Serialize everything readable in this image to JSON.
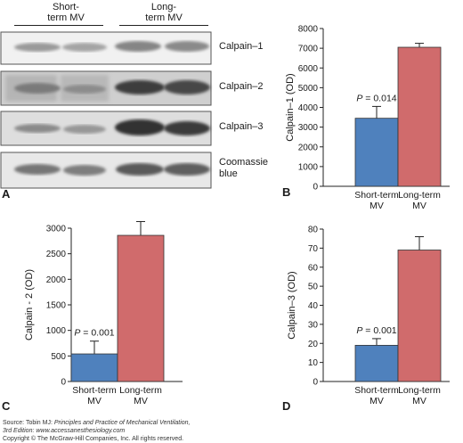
{
  "panel_a": {
    "letter": "A",
    "group_labels": [
      [
        "Short-",
        "term MV"
      ],
      [
        "Long-",
        "term MV"
      ]
    ],
    "blot_rows": [
      {
        "label": [
          "Calpain–1"
        ]
      },
      {
        "label": [
          "Calpain–2"
        ]
      },
      {
        "label": [
          "Calpain–3"
        ]
      },
      {
        "label": [
          "Coomassie",
          "blue"
        ]
      }
    ]
  },
  "chart_data": [
    {
      "letter": "B",
      "type": "bar",
      "ylabel": "Calpain–1 (OD)",
      "ylim": [
        0,
        8000
      ],
      "yticks": [
        0,
        1000,
        2000,
        3000,
        4000,
        5000,
        6000,
        7000,
        8000
      ],
      "categories": [
        [
          "Short-term",
          "MV"
        ],
        [
          "Long-term",
          "MV"
        ]
      ],
      "values": [
        3450,
        7050
      ],
      "errors": [
        600,
        200
      ],
      "colors": [
        "#4f81bd",
        "#d06b6c"
      ],
      "annotation": {
        "p": "P",
        "rest": " = 0.014"
      }
    },
    {
      "letter": "C",
      "type": "bar",
      "ylabel": "Calpain - 2 (OD)",
      "ylim": [
        0,
        3000
      ],
      "yticks": [
        0,
        500,
        1000,
        1500,
        2000,
        2500,
        3000
      ],
      "categories": [
        [
          "Short-term",
          "MV"
        ],
        [
          "Long-term",
          "MV"
        ]
      ],
      "values": [
        540,
        2860
      ],
      "errors": [
        250,
        270
      ],
      "colors": [
        "#4f81bd",
        "#d06b6c"
      ],
      "annotation": {
        "p": "P",
        "rest": " = 0.001"
      }
    },
    {
      "letter": "D",
      "type": "bar",
      "ylabel": "Calpain–3 (OD)",
      "ylim": [
        0,
        80
      ],
      "yticks": [
        0,
        10,
        20,
        30,
        40,
        50,
        60,
        70,
        80
      ],
      "categories": [
        [
          "Short-term",
          "MV"
        ],
        [
          "Long-term",
          "MV"
        ]
      ],
      "values": [
        19,
        69
      ],
      "errors": [
        3.5,
        7
      ],
      "colors": [
        "#4f81bd",
        "#d06b6c"
      ],
      "annotation": {
        "p": "P",
        "rest": " = 0.001"
      }
    }
  ],
  "source": {
    "prefix": "Source: Tobin MJ: ",
    "book": "Principles and Practice of Mechanical Ventilation,",
    "edition": "3rd Edition: www.accessanesthesiology.com",
    "copyright": "Copyright © The McGraw-Hill Companies, Inc. All rights reserved."
  }
}
